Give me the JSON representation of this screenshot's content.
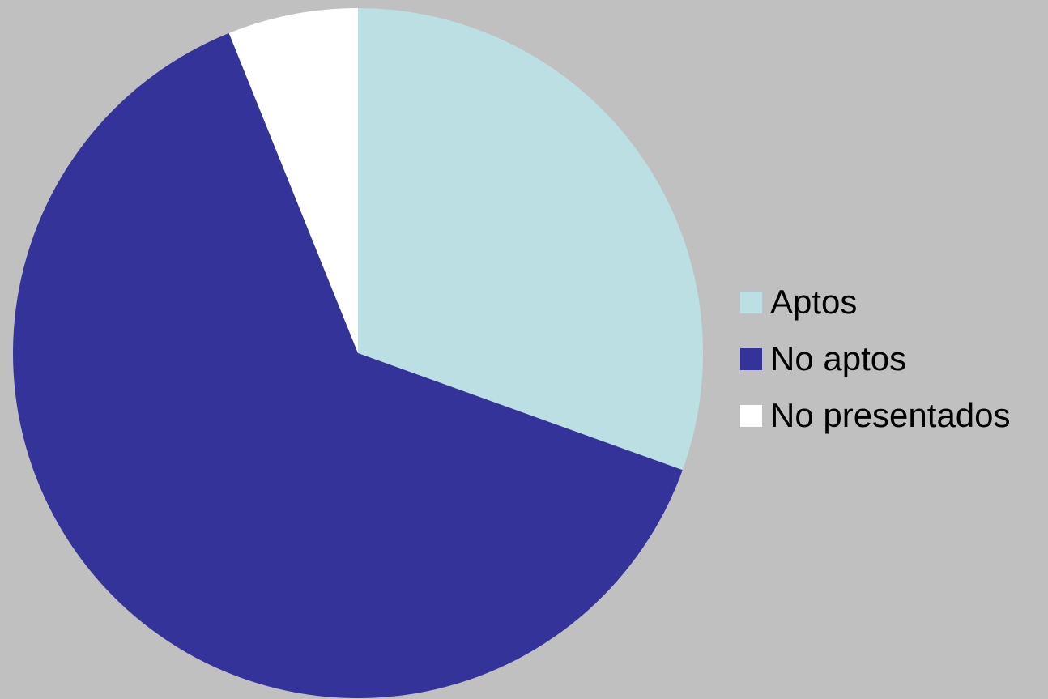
{
  "chart_data": {
    "type": "pie",
    "title": "",
    "legend_position": "right",
    "start_angle": "12 o'clock, clockwise",
    "slices": [
      {
        "label": "Aptos",
        "value": 30.5,
        "color": "#bbdfe2"
      },
      {
        "label": "No aptos",
        "value": 63.4,
        "color": "#333399"
      },
      {
        "label": "No presentados",
        "value": 6.1,
        "color": "#ffffff"
      }
    ]
  },
  "background_color": "#c0c0c0"
}
